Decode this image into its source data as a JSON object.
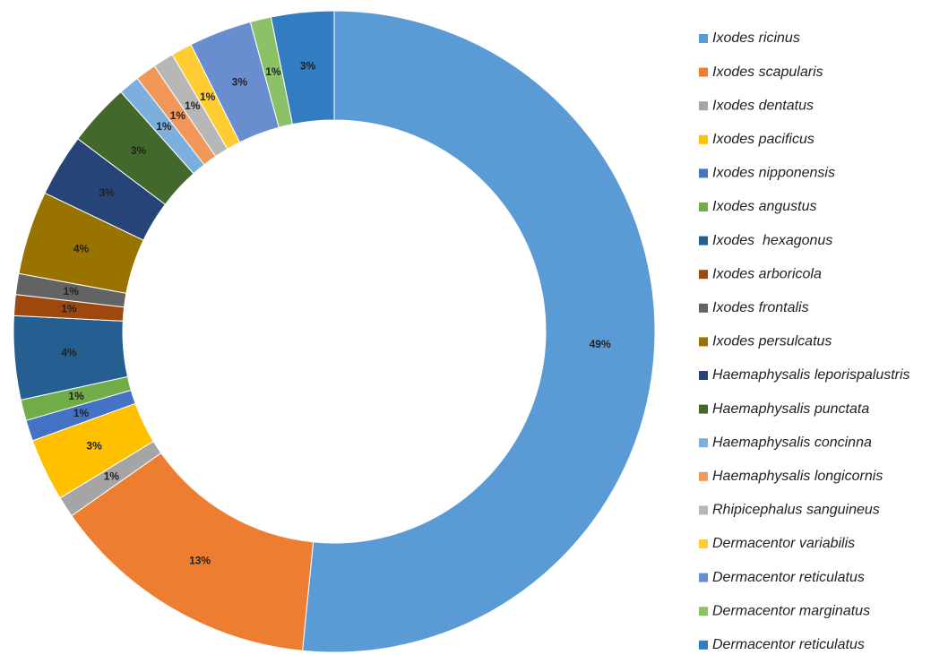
{
  "chart_data": {
    "type": "donut",
    "categories": [
      "Ixodes ricinus",
      "Ixodes scapularis",
      "Ixodes dentatus",
      "Ixodes pacificus",
      "Ixodes nipponensis",
      "Ixodes angustus",
      "Ixodes  hexagonus",
      "Ixodes arboricola",
      "Ixodes frontalis",
      "Ixodes persulcatus",
      "Haemaphysalis leporispalustris",
      "Haemaphysalis punctata",
      "Haemaphysalis concinna",
      "Haemaphysalis longicornis",
      "Rhipicephalus sanguineus",
      "Dermacentor variabilis",
      "Dermacentor reticulatus",
      "Dermacentor marginatus",
      "Dermacentor reticulatus"
    ],
    "values": [
      49,
      13,
      1,
      3,
      1,
      1,
      4,
      1,
      1,
      4,
      3,
      3,
      1,
      1,
      1,
      1,
      3,
      1,
      3
    ],
    "value_labels": [
      "49%",
      "13%",
      "1%",
      "3%",
      "1%",
      "1%",
      "4%",
      "1%",
      "1%",
      "4%",
      "3%",
      "3%",
      "1%",
      "1%",
      "1%",
      "1%",
      "3%",
      "1%",
      "3%"
    ],
    "colors": [
      "#5B9BD5",
      "#ED7D31",
      "#A5A5A5",
      "#FFC000",
      "#4472C4",
      "#70AD47",
      "#255E91",
      "#9E480E",
      "#636363",
      "#997300",
      "#264478",
      "#43682B",
      "#7CAFDD",
      "#F1975A",
      "#B7B7B7",
      "#FFCD33",
      "#698ED0",
      "#8CC168",
      "#327DC2"
    ],
    "legend": "right"
  }
}
